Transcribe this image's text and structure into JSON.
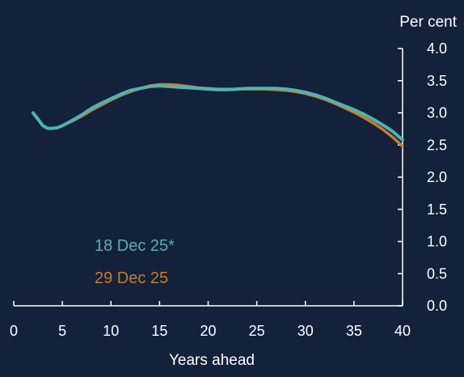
{
  "chart_data": {
    "type": "line",
    "xlabel": "Years ahead",
    "ylabel": "Per cent",
    "xlim": [
      0,
      40
    ],
    "ylim": [
      0.0,
      4.0
    ],
    "x_ticks": [
      "0",
      "5",
      "10",
      "15",
      "20",
      "25",
      "30",
      "35",
      "40"
    ],
    "y_ticks": [
      "0.0",
      "0.5",
      "1.0",
      "1.5",
      "2.0",
      "2.5",
      "3.0",
      "3.5",
      "4.0"
    ],
    "grid": false,
    "legend_position": "bottom-left",
    "series": [
      {
        "name": "18 Dec 25*",
        "color": "#4fb3b0",
        "x": [
          2,
          2.5,
          3,
          3.5,
          4,
          4.5,
          5,
          6,
          7,
          8,
          9,
          10,
          11,
          12,
          13,
          14,
          15,
          16,
          17,
          18,
          19,
          20,
          21,
          22,
          23,
          24,
          25,
          26,
          27,
          28,
          29,
          30,
          31,
          32,
          33,
          34,
          35,
          36,
          37,
          38,
          39,
          40
        ],
        "values": [
          3.0,
          2.9,
          2.8,
          2.76,
          2.76,
          2.77,
          2.8,
          2.88,
          2.97,
          3.07,
          3.15,
          3.22,
          3.29,
          3.35,
          3.38,
          3.41,
          3.42,
          3.41,
          3.4,
          3.39,
          3.38,
          3.37,
          3.36,
          3.36,
          3.37,
          3.38,
          3.38,
          3.38,
          3.38,
          3.37,
          3.35,
          3.32,
          3.28,
          3.23,
          3.17,
          3.11,
          3.05,
          2.98,
          2.9,
          2.81,
          2.71,
          2.58
        ]
      },
      {
        "name": "29 Dec 25",
        "color": "#c87a2c",
        "x": [
          2,
          2.5,
          3,
          3.5,
          4,
          4.5,
          5,
          6,
          7,
          8,
          9,
          10,
          11,
          12,
          13,
          14,
          15,
          16,
          17,
          18,
          19,
          20,
          21,
          22,
          23,
          24,
          25,
          26,
          27,
          28,
          29,
          30,
          31,
          32,
          33,
          34,
          35,
          36,
          37,
          38,
          39,
          40
        ],
        "values": [
          3.0,
          2.9,
          2.8,
          2.76,
          2.76,
          2.77,
          2.8,
          2.87,
          2.95,
          3.04,
          3.12,
          3.2,
          3.27,
          3.33,
          3.38,
          3.42,
          3.44,
          3.44,
          3.43,
          3.41,
          3.39,
          3.38,
          3.37,
          3.37,
          3.37,
          3.37,
          3.37,
          3.37,
          3.36,
          3.35,
          3.33,
          3.3,
          3.26,
          3.21,
          3.15,
          3.08,
          3.01,
          2.93,
          2.84,
          2.74,
          2.62,
          2.48
        ]
      }
    ]
  }
}
